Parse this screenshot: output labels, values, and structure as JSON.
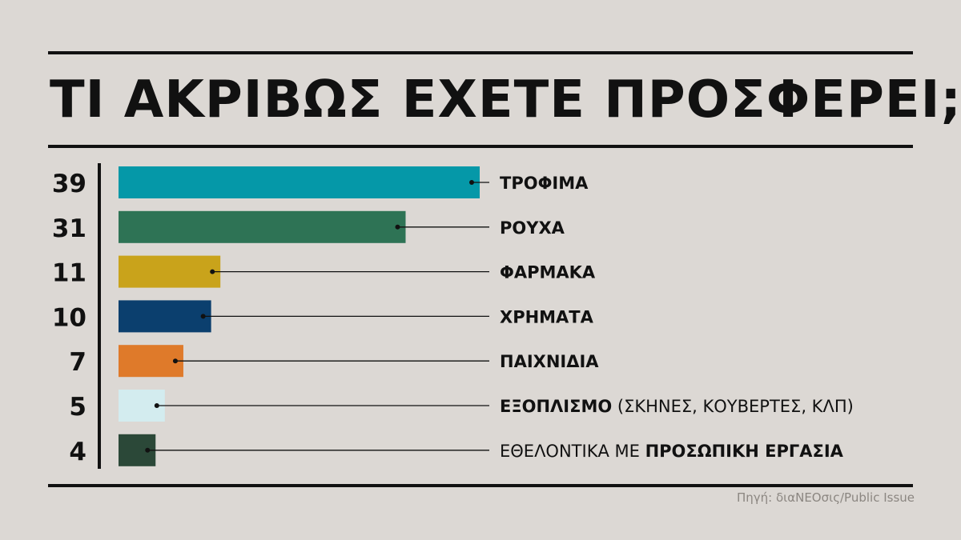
{
  "title": "ΤΙ ΑΚΡΙΒΩΣ ΕΧΕΤΕ ΠΡΟΣΦΕΡΕΙ;",
  "source": "Πηγή: διαΝΕΟσις/Public Issue",
  "colors": {
    "background": "#dcd8d4",
    "ink": "#111111",
    "source": "#8b8681"
  },
  "chart_data": {
    "type": "bar",
    "orientation": "horizontal",
    "title": "ΤΙ ΑΚΡΙΒΩΣ ΕΧΕΤΕ ΠΡΟΣΦΕΡΕΙ;",
    "xlim": [
      0,
      39
    ],
    "grid": false,
    "values": [
      39,
      31,
      11,
      10,
      7,
      5,
      4
    ],
    "value_labels": [
      "39",
      "31",
      "11",
      "10",
      "7",
      "5",
      "4"
    ],
    "categories": [
      [
        {
          "text": "ΤΡΟΦΙΜΑ",
          "bold": true
        }
      ],
      [
        {
          "text": "ΡΟΥΧΑ",
          "bold": true
        }
      ],
      [
        {
          "text": "ΦΑΡΜΑΚΑ",
          "bold": true
        }
      ],
      [
        {
          "text": "ΧΡΗΜΑΤΑ",
          "bold": true
        }
      ],
      [
        {
          "text": "ΠΑΙΧΝΙΔΙΑ",
          "bold": true
        }
      ],
      [
        {
          "text": "ΕΞΟΠΛΙΣΜΟ",
          "bold": true
        },
        {
          "text": " (ΣΚΗΝΕΣ, ΚΟΥΒΕΡΤΕΣ, ΚΛΠ)",
          "bold": false
        }
      ],
      [
        {
          "text": "ΕΘΕΛΟΝΤΙΚΑ ΜΕ ",
          "bold": false
        },
        {
          "text": "ΠΡΟΣΩΠΙΚΗ ΕΡΓΑΣΙΑ",
          "bold": true
        }
      ]
    ],
    "bar_colors": [
      "#0598a8",
      "#2e7355",
      "#c9a31b",
      "#0b3f6e",
      "#df7a2a",
      "#d3ecef",
      "#2b4838"
    ]
  }
}
